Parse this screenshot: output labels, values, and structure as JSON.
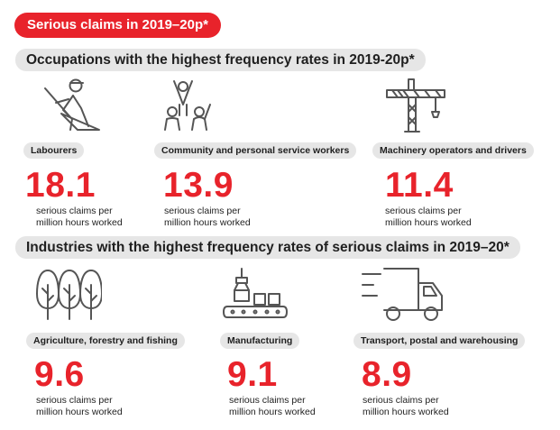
{
  "banner": {
    "title": "Serious claims in 2019–20p*"
  },
  "occupations": {
    "heading": "Occupations with the highest frequency rates in 2019-20p*",
    "items": [
      {
        "label": "Labourers",
        "value": "18.1",
        "icon": "labourer-shovel-icon"
      },
      {
        "label": "Community and personal service workers",
        "value": "13.9",
        "icon": "people-cheering-icon"
      },
      {
        "label": "Machinery operators and drivers",
        "value": "11.4",
        "icon": "tower-crane-icon"
      }
    ]
  },
  "industries": {
    "heading": "Industries with the highest frequency rates of serious claims in 2019–20*",
    "items": [
      {
        "label": "Agriculture, forestry and fishing",
        "value": "9.6",
        "icon": "trees-icon"
      },
      {
        "label": "Manufacturing",
        "value": "9.1",
        "icon": "conveyor-robot-arm-icon"
      },
      {
        "label": "Transport, postal and warehousing",
        "value": "8.9",
        "icon": "delivery-truck-icon"
      }
    ]
  },
  "unit_line1": "serious claims per",
  "unit_line2": "million hours worked",
  "colors": {
    "accent": "#e8232b",
    "pill": "#e6e6e6",
    "icon_stroke": "#555555"
  },
  "chart_data": [
    {
      "type": "bar",
      "title": "Occupations with the highest frequency rates in 2019-20p*",
      "categories": [
        "Labourers",
        "Community and personal service workers",
        "Machinery operators and drivers"
      ],
      "values": [
        18.1,
        13.9,
        11.4
      ],
      "ylabel": "serious claims per million hours worked"
    },
    {
      "type": "bar",
      "title": "Industries with the highest frequency rates of serious claims in 2019–20*",
      "categories": [
        "Agriculture, forestry and fishing",
        "Manufacturing",
        "Transport, postal and warehousing"
      ],
      "values": [
        9.6,
        9.1,
        8.9
      ],
      "ylabel": "serious claims per million hours worked"
    }
  ]
}
